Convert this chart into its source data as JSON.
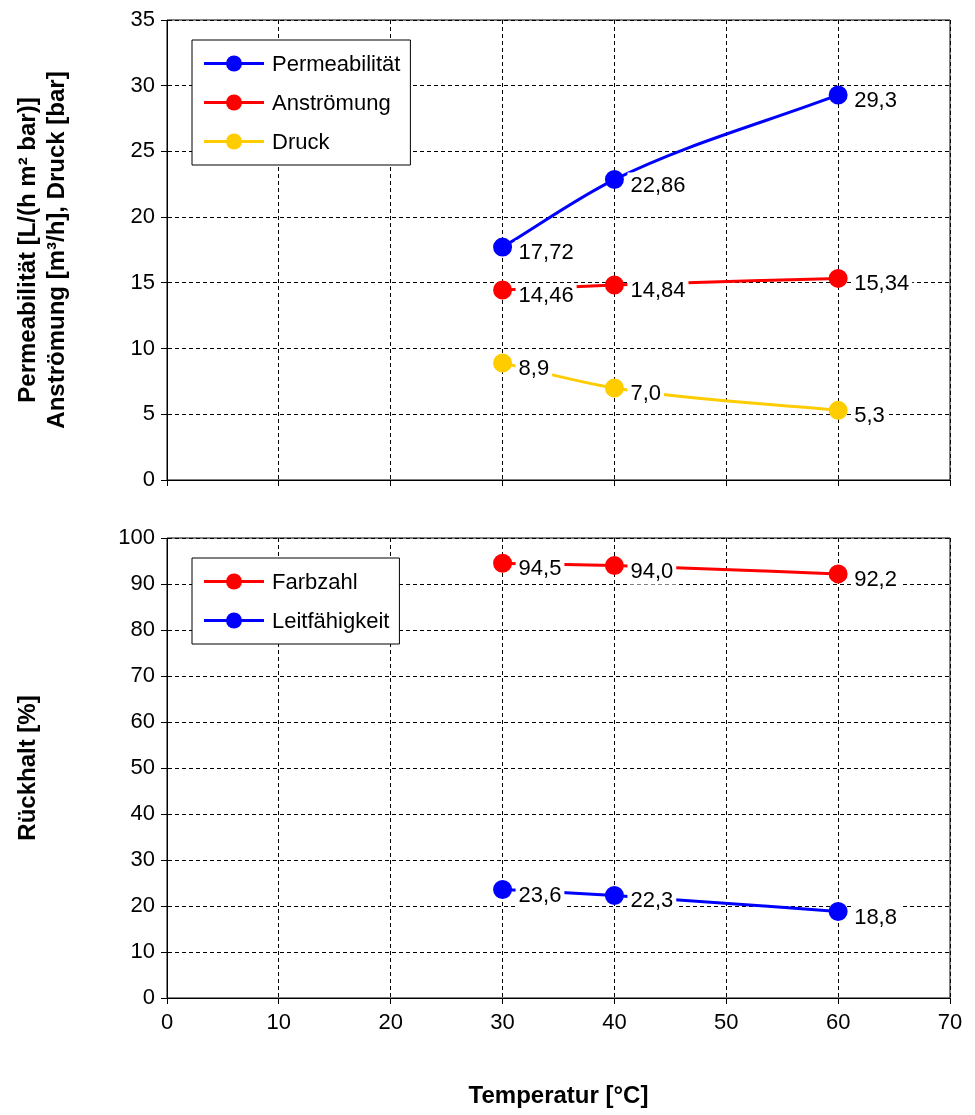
{
  "chart_data": [
    {
      "type": "line",
      "x": [
        30,
        40,
        60
      ],
      "xlim": [
        0,
        70
      ],
      "xticks": [
        0,
        10,
        20,
        30,
        40,
        50,
        60,
        70
      ],
      "ylim": [
        0,
        35
      ],
      "yticks": [
        0,
        5,
        10,
        15,
        20,
        25,
        30,
        35
      ],
      "tick_labels": "y",
      "ylabel": "Permeabilität [L/(h m² bar)]\nAnströmung [m³/h], Druck [bar]",
      "grid": true,
      "legend": "top left",
      "marker": "circle",
      "line_style": "solid",
      "series": [
        {
          "name": "Permeabilität",
          "color": "#0000ff",
          "values": [
            17.72,
            22.86,
            29.3
          ],
          "value_labels": [
            "17,72",
            "22,86",
            "29,3"
          ]
        },
        {
          "name": "Anströmung",
          "color": "#ff0000",
          "values": [
            14.46,
            14.84,
            15.34
          ],
          "value_labels": [
            "14,46",
            "14,84",
            "15,34"
          ]
        },
        {
          "name": "Druck",
          "color": "#ffcc00",
          "values": [
            8.9,
            7.0,
            5.3
          ],
          "value_labels": [
            "8,9",
            "7,0",
            "5,3"
          ]
        }
      ]
    },
    {
      "type": "line",
      "x": [
        30,
        40,
        60
      ],
      "xlim": [
        0,
        70
      ],
      "xticks": [
        0,
        10,
        20,
        30,
        40,
        50,
        60,
        70
      ],
      "ylim": [
        0,
        100
      ],
      "yticks": [
        0,
        10,
        20,
        30,
        40,
        50,
        60,
        70,
        80,
        90,
        100
      ],
      "xlabel": "Temperatur [°C]",
      "ylabel": "Rückhalt [%]",
      "grid": true,
      "legend": "top left",
      "marker": "circle",
      "line_style": "solid",
      "series": [
        {
          "name": "Farbzahl",
          "color": "#ff0000",
          "values": [
            94.5,
            94.0,
            92.2
          ],
          "value_labels": [
            "94,5",
            "94,0",
            "92,2"
          ]
        },
        {
          "name": "Leitfähigkeit",
          "color": "#0000ff",
          "values": [
            23.6,
            22.3,
            18.8
          ],
          "value_labels": [
            "23,6",
            "22,3",
            "18,8"
          ]
        }
      ]
    }
  ]
}
